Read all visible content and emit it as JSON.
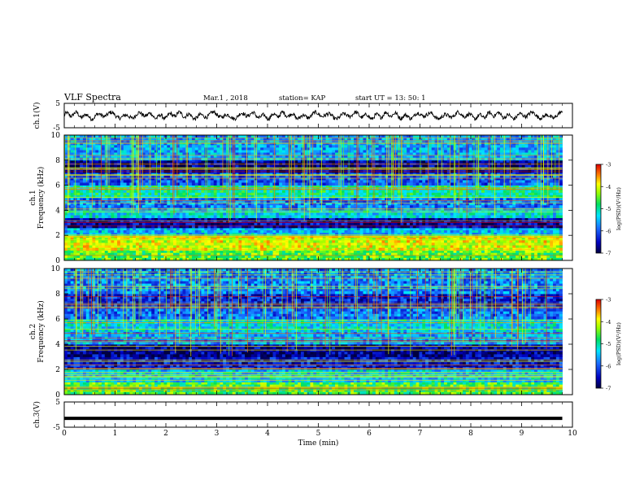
{
  "header": {
    "title": "VLF Spectra",
    "date": "Mar.1 , 2018",
    "station": "station= KAP",
    "start": "start UT = 13: 50: 1"
  },
  "chart_data": [
    {
      "type": "line",
      "panel": "ch1-waveform",
      "ylabel": "ch.1(V)",
      "ylim": [
        -5,
        5
      ],
      "yticks": [
        "5",
        "-5"
      ],
      "xlim": [
        0,
        10
      ],
      "description_values": {
        "mean": 0.0,
        "amplitude": 1.5
      }
    },
    {
      "type": "heatmap",
      "panel": "ch1-spectrogram",
      "ylabel": "ch.1\nFrequency (kHz)",
      "ylim": [
        0,
        10
      ],
      "yticks": [
        "0",
        "2",
        "4",
        "6",
        "8",
        "10"
      ],
      "xlim": [
        0,
        9.8
      ],
      "colorbar": {
        "label": "log(PSD)(V²/Hz)",
        "range": [
          -7,
          -3
        ],
        "ticks": [
          "-3",
          "-4",
          "-5",
          "-6",
          "-7"
        ]
      },
      "bands": [
        {
          "f_low": 0.0,
          "f_high": 0.8,
          "level": -4.5
        },
        {
          "f_low": 0.8,
          "f_high": 2.0,
          "level": -4.0
        },
        {
          "f_low": 2.0,
          "f_high": 2.6,
          "level": -5.5
        },
        {
          "f_low": 2.6,
          "f_high": 3.4,
          "level": -6.6
        },
        {
          "f_low": 3.4,
          "f_high": 4.0,
          "level": -5.3
        },
        {
          "f_low": 4.0,
          "f_high": 5.0,
          "level": -5.8
        },
        {
          "f_low": 5.0,
          "f_high": 6.0,
          "level": -5.0
        },
        {
          "f_low": 6.0,
          "f_high": 7.0,
          "level": -6.0
        },
        {
          "f_low": 7.0,
          "f_high": 8.0,
          "level": -6.7
        },
        {
          "f_low": 8.0,
          "f_high": 10.0,
          "level": -5.6
        }
      ]
    },
    {
      "type": "heatmap",
      "panel": "ch2-spectrogram",
      "ylabel": "ch.2\nFrequency (kHz)",
      "ylim": [
        0,
        10
      ],
      "yticks": [
        "0",
        "2",
        "4",
        "6",
        "8",
        "10"
      ],
      "xlim": [
        0,
        9.8
      ],
      "colorbar": {
        "label": "log(PSD)(V²/Hz)",
        "range": [
          -7,
          -3
        ],
        "ticks": [
          "-3",
          "-4",
          "-5",
          "-6",
          "-7"
        ]
      },
      "bands": [
        {
          "f_low": 0.0,
          "f_high": 1.0,
          "level": -4.6
        },
        {
          "f_low": 1.0,
          "f_high": 2.0,
          "level": -5.4
        },
        {
          "f_low": 2.0,
          "f_high": 3.0,
          "level": -6.4
        },
        {
          "f_low": 3.0,
          "f_high": 4.0,
          "level": -6.7
        },
        {
          "f_low": 4.0,
          "f_high": 5.0,
          "level": -5.6
        },
        {
          "f_low": 5.0,
          "f_high": 6.0,
          "level": -5.3
        },
        {
          "f_low": 6.0,
          "f_high": 7.0,
          "level": -5.9
        },
        {
          "f_low": 7.0,
          "f_high": 8.0,
          "level": -6.3
        },
        {
          "f_low": 8.0,
          "f_high": 10.0,
          "level": -5.8
        }
      ]
    },
    {
      "type": "line",
      "panel": "ch3-waveform",
      "ylabel": "ch.3(V)",
      "ylim": [
        -5,
        5
      ],
      "yticks": [
        "5",
        "-5"
      ],
      "xlim": [
        0,
        10
      ],
      "xlabel": "Time (min)",
      "xticks": [
        "0",
        "1",
        "2",
        "3",
        "4",
        "5",
        "6",
        "7",
        "8",
        "9",
        "10"
      ],
      "constant_value": -1.5
    }
  ]
}
